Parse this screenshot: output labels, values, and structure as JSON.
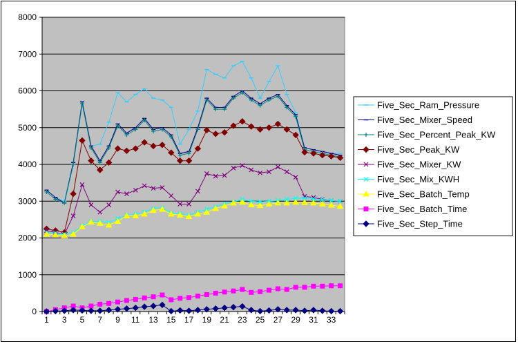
{
  "chart_data": {
    "type": "line",
    "title": "",
    "xlabel": "",
    "ylabel": "",
    "ylim": [
      0,
      8000
    ],
    "y_ticks": [
      "0",
      "1000",
      "2000",
      "3000",
      "4000",
      "5000",
      "6000",
      "7000",
      "8000"
    ],
    "x": [
      1,
      2,
      3,
      4,
      5,
      6,
      7,
      8,
      9,
      10,
      11,
      12,
      13,
      14,
      15,
      16,
      17,
      18,
      19,
      20,
      21,
      22,
      23,
      24,
      25,
      26,
      27,
      28,
      29,
      30,
      31,
      32,
      33,
      34
    ],
    "x_tick_labels": [
      "1",
      "3",
      "5",
      "7",
      "9",
      "11",
      "13",
      "15",
      "17",
      "19",
      "21",
      "23",
      "25",
      "27",
      "29",
      "31",
      "33"
    ],
    "plot_background": "#c0c0c0",
    "grid": true,
    "legend_position": "right",
    "series": [
      {
        "name": "Five_Sec_Ram_Pressure",
        "color": "#33ccff",
        "marker": "dash",
        "values": [
          3300,
          3100,
          3000,
          4050,
          5700,
          4500,
          4550,
          5150,
          5950,
          5700,
          5900,
          6050,
          5800,
          5750,
          5550,
          4550,
          4950,
          5450,
          6580,
          6450,
          6350,
          6680,
          6800,
          6350,
          5800,
          6250,
          6680,
          5900,
          5400,
          4450,
          4400,
          4350,
          4300,
          4300
        ]
      },
      {
        "name": "Five_Sec_Mixer_Speed",
        "color": "#000080",
        "marker": "dash",
        "values": [
          3300,
          3100,
          2950,
          4050,
          5700,
          4500,
          4100,
          4500,
          5100,
          4850,
          5000,
          5250,
          4950,
          5000,
          4800,
          4300,
          4350,
          5000,
          5800,
          5550,
          5550,
          5850,
          6000,
          5800,
          5650,
          5800,
          5900,
          5600,
          5350,
          4450,
          4400,
          4350,
          4300,
          4250
        ]
      },
      {
        "name": "Five_Sec_Percent_Peak_KW",
        "color": "#008080",
        "marker": "plus",
        "values": [
          3250,
          3050,
          2950,
          4000,
          5650,
          4450,
          4050,
          4450,
          5050,
          4800,
          4950,
          5200,
          4900,
          4950,
          4750,
          4250,
          4300,
          4950,
          5750,
          5500,
          5500,
          5800,
          5950,
          5750,
          5600,
          5750,
          5850,
          5550,
          5300,
          4400,
          4350,
          4300,
          4250,
          4200
        ]
      },
      {
        "name": "Five_Sec_Peak_KW",
        "color": "#800000",
        "marker": "diamond",
        "values": [
          2250,
          2200,
          2150,
          3200,
          4650,
          4100,
          3850,
          4050,
          4430,
          4370,
          4430,
          4600,
          4500,
          4530,
          4320,
          4100,
          4100,
          4430,
          4930,
          4830,
          4870,
          5050,
          5170,
          5030,
          4950,
          5000,
          5100,
          4950,
          4800,
          4330,
          4300,
          4250,
          4220,
          4180
        ]
      },
      {
        "name": "Five_Sec_Mixer_KW",
        "color": "#800080",
        "marker": "x",
        "values": [
          2200,
          2150,
          2100,
          2600,
          3450,
          2900,
          2700,
          2900,
          3250,
          3200,
          3300,
          3420,
          3350,
          3370,
          3150,
          2920,
          2920,
          3270,
          3750,
          3680,
          3700,
          3900,
          3970,
          3850,
          3770,
          3800,
          3930,
          3800,
          3650,
          3130,
          3100,
          3050,
          3020,
          3000
        ]
      },
      {
        "name": "Five_Sec_Mix_KWH",
        "color": "#00ffff",
        "marker": "x",
        "values": [
          2150,
          2130,
          2100,
          2150,
          2330,
          2450,
          2450,
          2420,
          2530,
          2620,
          2650,
          2700,
          2800,
          2820,
          2680,
          2660,
          2620,
          2700,
          2780,
          2850,
          2930,
          2980,
          3050,
          3000,
          2980,
          3000,
          3020,
          3050,
          3080,
          3080,
          3060,
          3040,
          3020,
          3000
        ]
      },
      {
        "name": "Five_Sec_Batch_Temp",
        "color": "#ffff00",
        "marker": "triangle",
        "values": [
          2100,
          2080,
          2060,
          2100,
          2300,
          2430,
          2400,
          2350,
          2450,
          2600,
          2600,
          2650,
          2750,
          2780,
          2650,
          2620,
          2580,
          2650,
          2700,
          2800,
          2870,
          2950,
          2970,
          2900,
          2880,
          2920,
          2950,
          2950,
          2970,
          2960,
          2950,
          2920,
          2890,
          2860
        ]
      },
      {
        "name": "Five_Sec_Batch_Time",
        "color": "#ff00ff",
        "marker": "square",
        "values": [
          0,
          50,
          100,
          150,
          100,
          150,
          200,
          220,
          260,
          300,
          330,
          370,
          400,
          450,
          320,
          360,
          380,
          420,
          460,
          500,
          530,
          560,
          600,
          520,
          540,
          580,
          620,
          600,
          660,
          660,
          690,
          690,
          700,
          700
        ]
      },
      {
        "name": "Five_Sec_Step_Time",
        "color": "#000080",
        "marker": "diamond",
        "values": [
          0,
          10,
          20,
          40,
          30,
          20,
          20,
          40,
          60,
          80,
          100,
          130,
          150,
          180,
          10,
          30,
          20,
          40,
          60,
          80,
          100,
          120,
          140,
          40,
          10,
          30,
          60,
          40,
          40,
          20,
          40,
          20,
          10,
          10
        ]
      }
    ]
  }
}
